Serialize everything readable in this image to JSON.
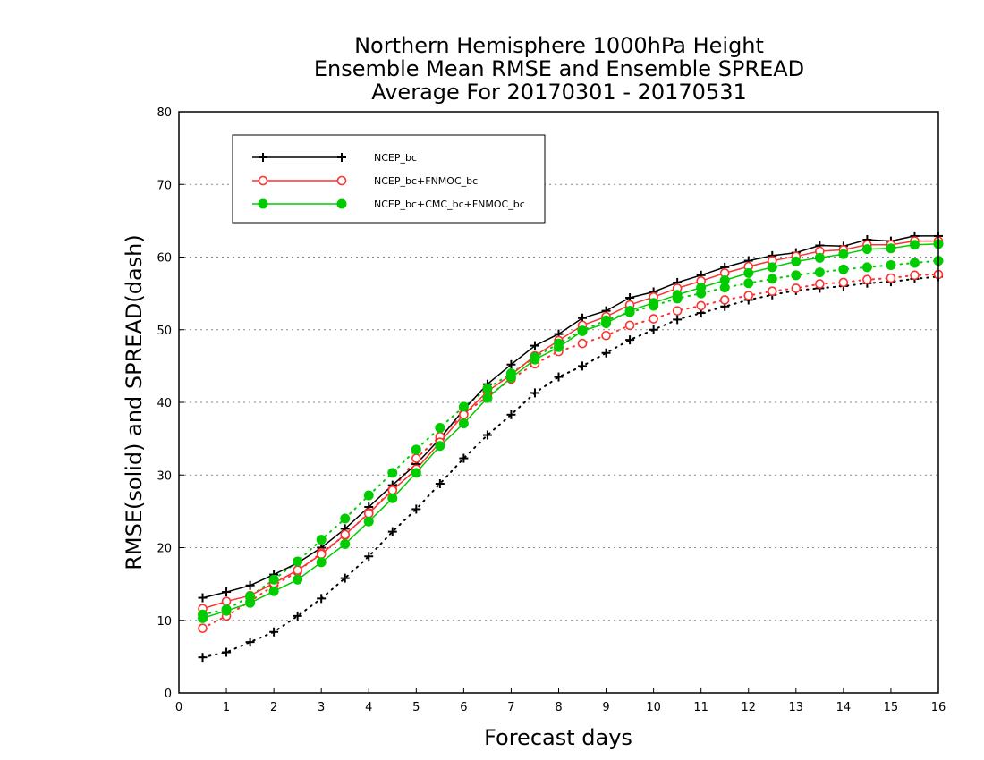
{
  "chart_data": {
    "type": "line",
    "title": [
      "Northern Hemisphere 1000hPa Height",
      "Ensemble Mean RMSE and Ensemble SPREAD",
      "Average For 20170301 - 20170531"
    ],
    "xlabel": "Forecast days",
    "ylabel": "RMSE(solid) and SPREAD(dash)",
    "xlim": [
      0,
      16
    ],
    "ylim": [
      0,
      80
    ],
    "xticks": [
      "0",
      "1",
      "2",
      "3",
      "4",
      "5",
      "6",
      "7",
      "8",
      "9",
      "10",
      "11",
      "12",
      "13",
      "14",
      "15",
      "16"
    ],
    "yticks": [
      "0",
      "10",
      "20",
      "30",
      "40",
      "50",
      "60",
      "70",
      "80"
    ],
    "grid": "horizontal dotted",
    "legend_position": "top-left",
    "x": [
      0.5,
      1,
      1.5,
      2,
      2.5,
      3,
      3.5,
      4,
      4.5,
      5,
      5.5,
      6,
      6.5,
      7,
      7.5,
      8,
      8.5,
      9,
      9.5,
      10,
      10.5,
      11,
      11.5,
      12,
      12.5,
      13,
      13.5,
      14,
      14.5,
      15,
      15.5,
      16
    ],
    "series": [
      {
        "name": "NCEP_bc",
        "color": "#000000",
        "marker": "plus",
        "rmse": [
          13.1,
          13.9,
          14.8,
          16.3,
          17.9,
          20.0,
          22.6,
          25.6,
          28.6,
          31.5,
          35.0,
          39.0,
          42.5,
          45.2,
          47.8,
          49.4,
          51.6,
          52.6,
          54.4,
          55.2,
          56.5,
          57.5,
          58.6,
          59.5,
          60.2,
          60.6,
          61.6,
          61.5,
          62.4,
          62.2,
          62.9,
          62.9
        ],
        "spread": [
          4.9,
          5.6,
          7.0,
          8.4,
          10.6,
          13.0,
          15.8,
          18.8,
          22.2,
          25.3,
          28.8,
          32.3,
          35.5,
          38.3,
          41.3,
          43.5,
          45.0,
          46.8,
          48.6,
          50.0,
          51.4,
          52.3,
          53.2,
          54.1,
          54.8,
          55.4,
          55.7,
          56.0,
          56.4,
          56.6,
          57.0,
          57.3
        ]
      },
      {
        "name": "NCEP_bc+FNMOC_bc",
        "color": "#ff3030",
        "marker": "open-circle",
        "rmse": [
          11.6,
          12.6,
          13.4,
          15.1,
          16.9,
          19.1,
          21.8,
          24.7,
          27.9,
          30.8,
          34.5,
          38.3,
          41.5,
          43.8,
          46.4,
          48.5,
          50.6,
          51.8,
          53.4,
          54.5,
          55.7,
          56.7,
          57.8,
          58.7,
          59.5,
          60.1,
          60.8,
          61.0,
          61.7,
          61.7,
          62.2,
          62.2
        ],
        "spread": [
          8.9,
          10.6,
          12.6,
          14.8,
          16.7,
          19.3,
          21.7,
          24.8,
          28.0,
          32.3,
          35.3,
          38.4,
          40.8,
          43.2,
          45.3,
          47.0,
          48.1,
          49.2,
          50.6,
          51.5,
          52.6,
          53.3,
          54.1,
          54.7,
          55.3,
          55.7,
          56.3,
          56.5,
          56.9,
          57.1,
          57.5,
          57.6
        ]
      },
      {
        "name": "NCEP_bc+CMC_bc+FNMOC_bc",
        "color": "#00cc00",
        "marker": "filled-circle",
        "rmse": [
          10.3,
          11.3,
          12.4,
          14.0,
          15.6,
          18.0,
          20.5,
          23.6,
          26.8,
          30.3,
          34.0,
          37.1,
          40.6,
          43.4,
          45.9,
          47.6,
          49.8,
          50.9,
          52.6,
          53.7,
          54.8,
          55.8,
          56.8,
          57.8,
          58.6,
          59.4,
          59.9,
          60.4,
          61.1,
          61.2,
          61.7,
          61.8
        ],
        "spread": [
          10.8,
          11.5,
          13.3,
          15.6,
          18.1,
          21.1,
          24.0,
          27.2,
          30.3,
          33.5,
          36.5,
          39.4,
          41.9,
          44.0,
          46.2,
          48.1,
          49.9,
          51.3,
          52.4,
          53.3,
          54.3,
          55.0,
          55.8,
          56.4,
          57.0,
          57.5,
          57.9,
          58.3,
          58.6,
          58.9,
          59.2,
          59.5
        ]
      }
    ]
  }
}
